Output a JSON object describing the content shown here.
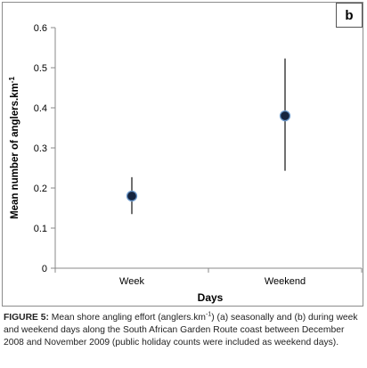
{
  "panel_label": "b",
  "chart_data": {
    "type": "scatter",
    "error_bars": true,
    "categories": [
      "Week",
      "Weekend"
    ],
    "series": [
      {
        "values": [
          0.18,
          0.38
        ],
        "error_low": [
          0.135,
          0.243
        ],
        "error_high": [
          0.227,
          0.523
        ]
      }
    ],
    "xlabel": "Days",
    "ylabel": "Mean number of anglers.km",
    "ylabel_sup": "-1",
    "ylim": [
      0,
      0.6
    ],
    "yticks": [
      "0",
      "0.1",
      "0.2",
      "0.3",
      "0.4",
      "0.5",
      "0.6"
    ],
    "grid": false,
    "marker_color": "#15243f",
    "marker_edge": "#6e9bcd"
  },
  "caption": {
    "label": "FIGURE 5:",
    "text_1": " Mean shore angling effort (anglers.km",
    "sup": "-1",
    "text_2": ") (a) seasonally and (b) during week and weekend days along the South African Garden Route coast between December 2008 and November 2009 (public holiday counts were included as weekend days)."
  }
}
